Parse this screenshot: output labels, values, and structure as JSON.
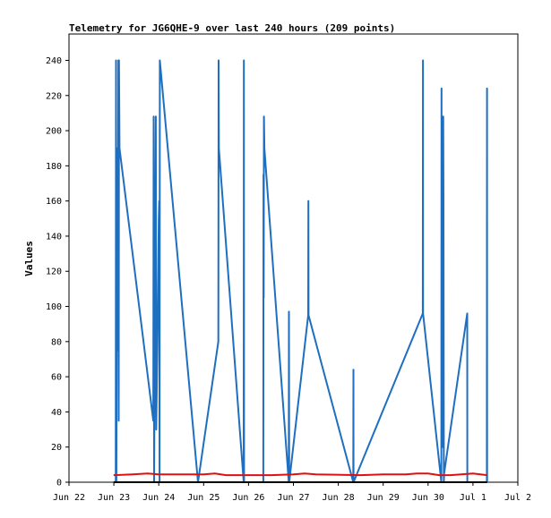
{
  "chart_data": {
    "type": "line",
    "title": "Telemetry for JG6QHE-9 over last 240 hours (209 points)",
    "xlabel": "",
    "ylabel": "Values",
    "ylim": [
      0,
      255
    ],
    "yticks": [
      0,
      20,
      40,
      60,
      80,
      100,
      120,
      140,
      160,
      180,
      200,
      220,
      240
    ],
    "xlim": [
      "2024-06-22 00:00",
      "2024-07-02 00:00"
    ],
    "xticks": [
      {
        "x": "2024-06-22",
        "label": "Jun 22"
      },
      {
        "x": "2024-06-23",
        "label": "Jun 23"
      },
      {
        "x": "2024-06-24",
        "label": "Jun 24"
      },
      {
        "x": "2024-06-25",
        "label": "Jun 25"
      },
      {
        "x": "2024-06-26",
        "label": "Jun 26"
      },
      {
        "x": "2024-06-27",
        "label": "Jun 27"
      },
      {
        "x": "2024-06-28",
        "label": "Jun 28"
      },
      {
        "x": "2024-06-29",
        "label": "Jun 29"
      },
      {
        "x": "2024-06-30",
        "label": "Jun 30"
      },
      {
        "x": "2024-07-01",
        "label": "Jul 1"
      },
      {
        "x": "2024-07-02",
        "label": "Jul 2"
      }
    ],
    "grid": false,
    "legend": "none",
    "colors": {
      "series_blue": "#1f6fc0",
      "series_red": "#e01010",
      "series_black": "#000000",
      "frame": "#000000"
    },
    "series": [
      {
        "color": "#1f6fc0",
        "points": [
          [
            "2024-06-23 01:00",
            0
          ],
          [
            "2024-06-23 01:10",
            240
          ],
          [
            "2024-06-23 01:20",
            0
          ],
          [
            "2024-06-23 01:45",
            190
          ],
          [
            "2024-06-23 02:00",
            150
          ],
          [
            "2024-06-23 02:10",
            75
          ],
          [
            "2024-06-23 02:25",
            240
          ],
          [
            "2024-06-23 02:35",
            35
          ],
          [
            "2024-06-23 02:45",
            240
          ],
          [
            "2024-06-23 03:00",
            190
          ],
          [
            "2024-06-23 21:05",
            35
          ],
          [
            "2024-06-23 21:15",
            208
          ],
          [
            "2024-06-23 21:30",
            0
          ],
          [
            "2024-06-23 22:25",
            208
          ],
          [
            "2024-06-23 22:40",
            30
          ],
          [
            "2024-06-23 23:30",
            100
          ],
          [
            "2024-06-24 00:00",
            150
          ],
          [
            "2024-06-24 00:15",
            160
          ],
          [
            "2024-06-24 00:25",
            0
          ],
          [
            "2024-06-24 00:35",
            240
          ],
          [
            "2024-06-24 21:00",
            0
          ],
          [
            "2024-06-25 07:50",
            80
          ],
          [
            "2024-06-25 08:00",
            240
          ],
          [
            "2024-06-25 08:10",
            190
          ],
          [
            "2024-06-25 21:25",
            0
          ],
          [
            "2024-06-25 21:30",
            240
          ],
          [
            "2024-06-25 21:35",
            0
          ],
          [
            "2024-06-26 07:55",
            0
          ],
          [
            "2024-06-26 08:00",
            175
          ],
          [
            "2024-06-26 08:05",
            105
          ],
          [
            "2024-06-26 08:15",
            208
          ],
          [
            "2024-06-26 08:30",
            190
          ],
          [
            "2024-06-26 21:30",
            0
          ],
          [
            "2024-06-26 21:35",
            97
          ],
          [
            "2024-06-26 21:45",
            0
          ],
          [
            "2024-06-27 07:55",
            95
          ],
          [
            "2024-06-27 08:00",
            160
          ],
          [
            "2024-06-27 08:05",
            95
          ],
          [
            "2024-06-28 08:00",
            0
          ],
          [
            "2024-06-28 08:05",
            64
          ],
          [
            "2024-06-28 08:10",
            0
          ],
          [
            "2024-06-29 21:10",
            96
          ],
          [
            "2024-06-29 21:15",
            240
          ],
          [
            "2024-06-29 21:20",
            96
          ],
          [
            "2024-06-30 07:05",
            0
          ],
          [
            "2024-06-30 07:10",
            224
          ],
          [
            "2024-06-30 07:20",
            25
          ],
          [
            "2024-06-30 07:35",
            133
          ],
          [
            "2024-06-30 07:45",
            20
          ],
          [
            "2024-06-30 08:05",
            208
          ],
          [
            "2024-06-30 08:15",
            160
          ],
          [
            "2024-06-30 08:25",
            0
          ],
          [
            "2024-06-30 08:35",
            5
          ],
          [
            "2024-06-30 20:55",
            96
          ],
          [
            "2024-06-30 21:00",
            0
          ],
          [
            "2024-07-01 07:25",
            0
          ],
          [
            "2024-07-01 07:30",
            224
          ],
          [
            "2024-07-01 07:35",
            0
          ]
        ]
      },
      {
        "color": "#e01010",
        "points": [
          [
            "2024-06-22 23:50",
            4
          ],
          [
            "2024-06-23 10:00",
            4.5
          ],
          [
            "2024-06-23 18:00",
            5
          ],
          [
            "2024-06-24 00:00",
            4.5
          ],
          [
            "2024-06-25 00:00",
            4.5
          ],
          [
            "2024-06-25 06:00",
            5
          ],
          [
            "2024-06-25 12:00",
            4
          ],
          [
            "2024-06-26 12:00",
            4
          ],
          [
            "2024-06-27 00:00",
            4.5
          ],
          [
            "2024-06-27 06:00",
            5
          ],
          [
            "2024-06-27 12:00",
            4.5
          ],
          [
            "2024-06-28 12:00",
            4
          ],
          [
            "2024-06-29 00:00",
            4.5
          ],
          [
            "2024-06-29 12:00",
            4.5
          ],
          [
            "2024-06-29 18:00",
            5
          ],
          [
            "2024-06-30 00:00",
            5
          ],
          [
            "2024-06-30 06:00",
            4
          ],
          [
            "2024-06-30 12:00",
            4
          ],
          [
            "2024-07-01 00:00",
            5
          ],
          [
            "2024-07-01 07:35",
            4
          ]
        ]
      },
      {
        "color": "#000000",
        "points": [
          [
            "2024-06-22 23:50",
            0
          ],
          [
            "2024-07-01 07:35",
            0
          ]
        ]
      }
    ]
  }
}
